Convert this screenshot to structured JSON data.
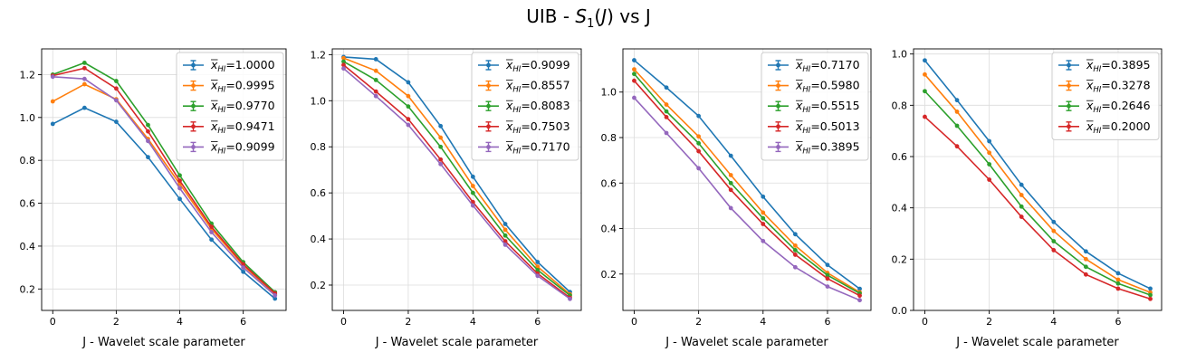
{
  "figure": {
    "title_prefix": "UIB - ",
    "title_S": "S",
    "title_sub": "1",
    "title_paren_open": "(",
    "title_J": "J",
    "title_paren_close": ")",
    "title_suffix": " vs J"
  },
  "colors": [
    "#1f77b4",
    "#ff7f0e",
    "#2ca02c",
    "#d62728",
    "#9467bd"
  ],
  "chart_data": [
    {
      "type": "line",
      "xlabel": "J - Wavelet scale parameter",
      "x": [
        0,
        1,
        2,
        3,
        4,
        5,
        6,
        7
      ],
      "xticks": [
        "0",
        "2",
        "4",
        "6"
      ],
      "ylim": [
        0.1,
        1.32
      ],
      "yticks": [
        0.2,
        0.4,
        0.6,
        0.8,
        1.0,
        1.2
      ],
      "ytick_labels": [
        "0.2",
        "0.4",
        "0.6",
        "0.8",
        "1.0",
        "1.2"
      ],
      "grid": true,
      "legend_position": "top-right",
      "series": [
        {
          "name": "=1.0000",
          "values": [
            0.97,
            1.045,
            0.98,
            0.815,
            0.62,
            0.43,
            0.28,
            0.155
          ]
        },
        {
          "name": "=0.9995",
          "values": [
            1.075,
            1.155,
            1.085,
            0.9,
            0.69,
            0.48,
            0.31,
            0.175
          ]
        },
        {
          "name": "=0.9770",
          "values": [
            1.2,
            1.255,
            1.17,
            0.965,
            0.73,
            0.505,
            0.325,
            0.185
          ]
        },
        {
          "name": "=0.9471",
          "values": [
            1.195,
            1.23,
            1.135,
            0.935,
            0.705,
            0.49,
            0.315,
            0.18
          ]
        },
        {
          "name": "=0.9099",
          "values": [
            1.19,
            1.18,
            1.08,
            0.89,
            0.67,
            0.465,
            0.3,
            0.17
          ]
        }
      ]
    },
    {
      "type": "line",
      "xlabel": "J - Wavelet scale parameter",
      "x": [
        0,
        1,
        2,
        3,
        4,
        5,
        6,
        7
      ],
      "xticks": [
        "0",
        "2",
        "4",
        "6"
      ],
      "ylim": [
        0.09,
        1.225
      ],
      "yticks": [
        0.2,
        0.4,
        0.6,
        0.8,
        1.0,
        1.2
      ],
      "ytick_labels": [
        "0.2",
        "0.4",
        "0.6",
        "0.8",
        "1.0",
        "1.2"
      ],
      "grid": true,
      "legend_position": "top-right",
      "series": [
        {
          "name": "=0.9099",
          "values": [
            1.19,
            1.18,
            1.08,
            0.89,
            0.67,
            0.465,
            0.3,
            0.17
          ]
        },
        {
          "name": "=0.8557",
          "values": [
            1.185,
            1.13,
            1.02,
            0.84,
            0.63,
            0.44,
            0.28,
            0.16
          ]
        },
        {
          "name": "=0.8083",
          "values": [
            1.17,
            1.09,
            0.975,
            0.8,
            0.6,
            0.415,
            0.265,
            0.155
          ]
        },
        {
          "name": "=0.7503",
          "values": [
            1.155,
            1.04,
            0.92,
            0.745,
            0.56,
            0.39,
            0.25,
            0.145
          ]
        },
        {
          "name": "=0.7170",
          "values": [
            1.14,
            1.02,
            0.895,
            0.725,
            0.545,
            0.375,
            0.24,
            0.14
          ]
        }
      ]
    },
    {
      "type": "line",
      "xlabel": "J - Wavelet scale parameter",
      "x": [
        0,
        1,
        2,
        3,
        4,
        5,
        6,
        7
      ],
      "xticks": [
        "0",
        "2",
        "4",
        "6"
      ],
      "ylim": [
        0.04,
        1.19
      ],
      "yticks": [
        0.2,
        0.4,
        0.6,
        0.8,
        1.0
      ],
      "ytick_labels": [
        "0.2",
        "0.4",
        "0.6",
        "0.8",
        "1.0"
      ],
      "grid": true,
      "legend_position": "top-right",
      "series": [
        {
          "name": "=0.7170",
          "values": [
            1.14,
            1.02,
            0.895,
            0.72,
            0.54,
            0.375,
            0.24,
            0.135
          ]
        },
        {
          "name": "=0.5980",
          "values": [
            1.1,
            0.945,
            0.805,
            0.635,
            0.47,
            0.325,
            0.205,
            0.12
          ]
        },
        {
          "name": "=0.5515",
          "values": [
            1.08,
            0.915,
            0.775,
            0.6,
            0.445,
            0.305,
            0.195,
            0.115
          ]
        },
        {
          "name": "=0.5013",
          "values": [
            1.05,
            0.89,
            0.74,
            0.57,
            0.42,
            0.285,
            0.18,
            0.105
          ]
        },
        {
          "name": "=0.3895",
          "values": [
            0.975,
            0.82,
            0.665,
            0.49,
            0.345,
            0.23,
            0.145,
            0.085
          ]
        }
      ]
    },
    {
      "type": "line",
      "xlabel": "J - Wavelet scale parameter",
      "x": [
        0,
        1,
        2,
        3,
        4,
        5,
        6,
        7
      ],
      "xticks": [
        "0",
        "2",
        "4",
        "6"
      ],
      "ylim": [
        0.0,
        1.02
      ],
      "yticks": [
        0.0,
        0.2,
        0.4,
        0.6,
        0.8,
        1.0
      ],
      "ytick_labels": [
        "0.0",
        "0.2",
        "0.4",
        "0.6",
        "0.8",
        "1.0"
      ],
      "grid": true,
      "legend_position": "top-right",
      "series": [
        {
          "name": "=0.3895",
          "values": [
            0.975,
            0.82,
            0.66,
            0.49,
            0.345,
            0.23,
            0.145,
            0.085
          ]
        },
        {
          "name": "=0.3278",
          "values": [
            0.92,
            0.775,
            0.615,
            0.45,
            0.31,
            0.2,
            0.12,
            0.07
          ]
        },
        {
          "name": "=0.2646",
          "values": [
            0.855,
            0.72,
            0.57,
            0.405,
            0.27,
            0.17,
            0.105,
            0.06
          ]
        },
        {
          "name": "=0.2000",
          "values": [
            0.755,
            0.64,
            0.51,
            0.365,
            0.235,
            0.14,
            0.085,
            0.045
          ]
        }
      ]
    }
  ]
}
